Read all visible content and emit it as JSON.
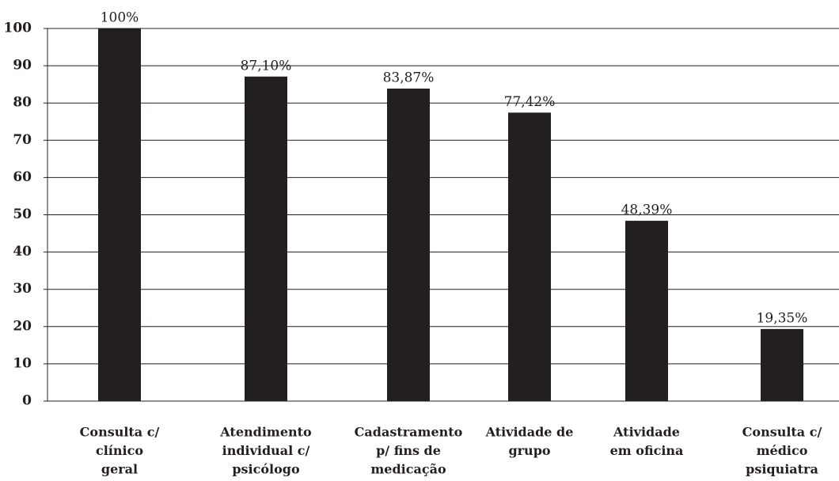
{
  "chart_data": {
    "type": "bar",
    "categories": [
      [
        "Consulta c/",
        "clínico",
        "geral"
      ],
      [
        "Atendimento",
        "individual c/",
        "psicólogo"
      ],
      [
        "Cadastramento",
        "p/ fins de",
        "medicação"
      ],
      [
        "Atividade de",
        "grupo"
      ],
      [
        "Atividade",
        "em oficina"
      ],
      [
        "Consulta c/",
        "médico",
        "psiquiatra"
      ]
    ],
    "values": [
      100,
      87.1,
      83.87,
      77.42,
      48.39,
      19.35
    ],
    "value_labels": [
      "100%",
      "87,10%",
      "83,87%",
      "77,42%",
      "48,39%",
      "19,35%"
    ],
    "color": "#231f20",
    "ylim": [
      0,
      100
    ],
    "yticks": [
      0,
      10,
      20,
      30,
      40,
      50,
      60,
      70,
      80,
      90,
      100
    ],
    "grid": true
  }
}
